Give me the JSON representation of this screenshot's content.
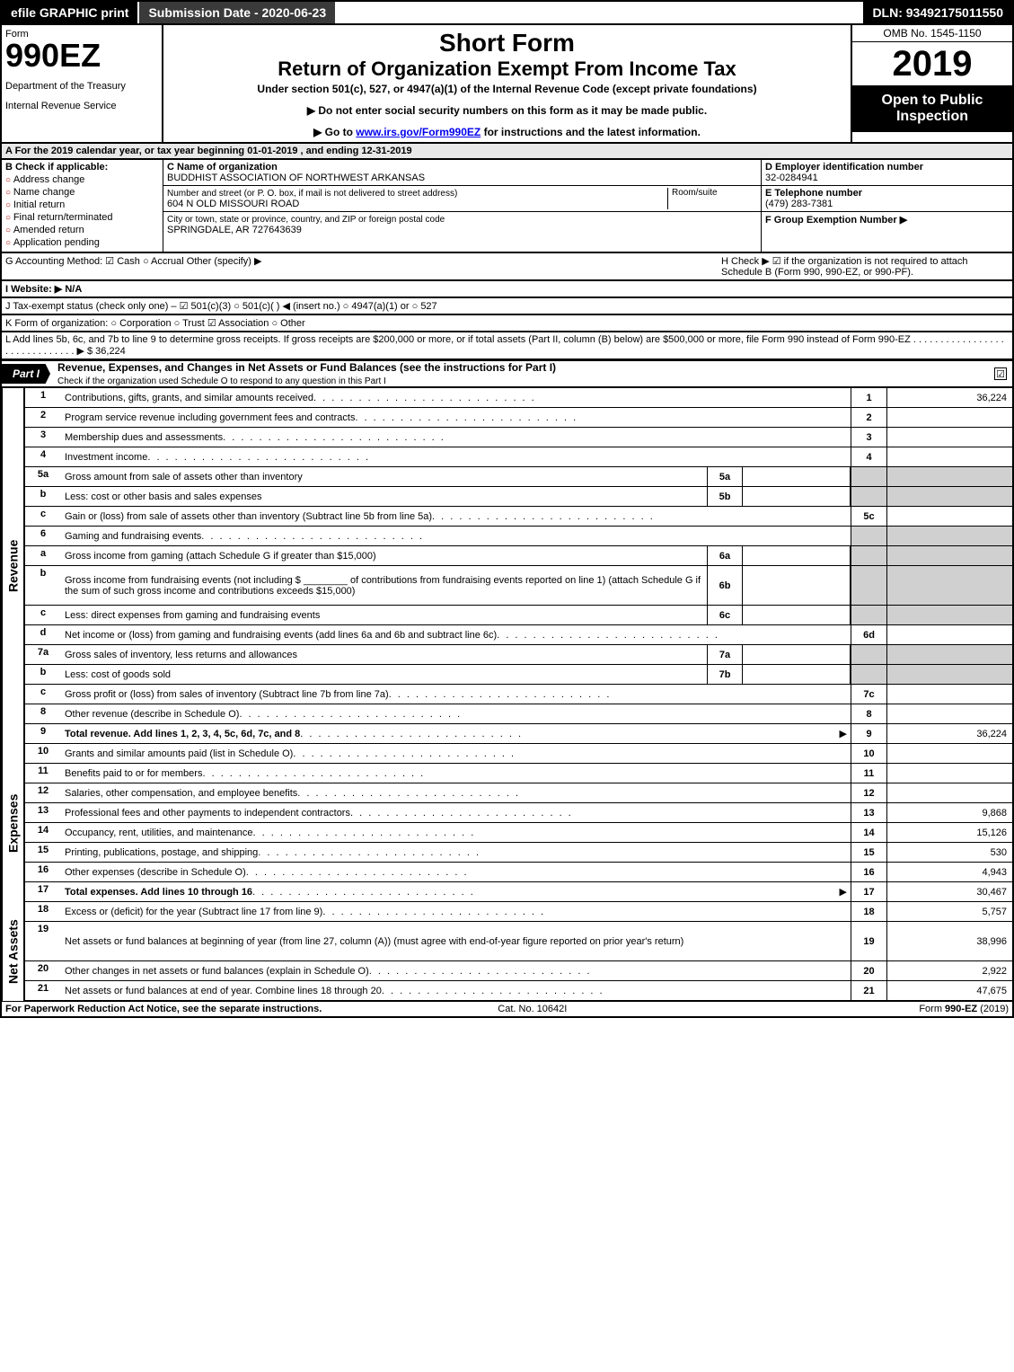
{
  "colors": {
    "black": "#000000",
    "white": "#ffffff",
    "darkgray": "#3a3a3a",
    "shade": "#d0d0d0",
    "lightgray": "#e8e8e8",
    "link": "#0000ee",
    "redcircle": "#b00000"
  },
  "topbar": {
    "efile": "efile GRAPHIC print",
    "subdate": "Submission Date - 2020-06-23",
    "dln": "DLN: 93492175011550"
  },
  "header": {
    "form_label": "Form",
    "form_num": "990EZ",
    "dept1": "Department of the Treasury",
    "dept2": "Internal Revenue Service",
    "title1": "Short Form",
    "title2": "Return of Organization Exempt From Income Tax",
    "sub": "Under section 501(c), 527, or 4947(a)(1) of the Internal Revenue Code (except private foundations)",
    "note1": "▶ Do not enter social security numbers on this form as it may be made public.",
    "note2_pre": "▶ Go to ",
    "note2_link": "www.irs.gov/Form990EZ",
    "note2_post": " for instructions and the latest information.",
    "omb": "OMB No. 1545-1150",
    "year": "2019",
    "open": "Open to Public Inspection"
  },
  "calline": "A  For the 2019 calendar year, or tax year beginning 01-01-2019 , and ending 12-31-2019",
  "boxB": {
    "title": "B  Check if applicable:",
    "items": [
      "Address change",
      "Name change",
      "Initial return",
      "Final return/terminated",
      "Amended return",
      "Application pending"
    ]
  },
  "boxC": {
    "c_label": "C Name of organization",
    "c_name": "BUDDHIST ASSOCIATION OF NORTHWEST ARKANSAS",
    "street_label": "Number and street (or P. O. box, if mail is not delivered to street address)",
    "street": "604 N OLD MISSOURI ROAD",
    "room_label": "Room/suite",
    "city_label": "City or town, state or province, country, and ZIP or foreign postal code",
    "city": "SPRINGDALE, AR  727643639"
  },
  "boxD": {
    "d_label": "D Employer identification number",
    "d_ein": "32-0284941",
    "e_label": "E Telephone number",
    "e_phone": "(479) 283-7381",
    "f_label": "F Group Exemption Number  ▶"
  },
  "gline": {
    "g": "G Accounting Method:  ☑ Cash  ○ Accrual   Other (specify) ▶",
    "h": "H  Check ▶ ☑ if the organization is not required to attach Schedule B (Form 990, 990-EZ, or 990-PF)."
  },
  "iline": "I Website: ▶ N/A",
  "jline": "J Tax-exempt status (check only one) – ☑ 501(c)(3)  ○ 501(c)( )  ◀ (insert no.)  ○ 4947(a)(1) or  ○ 527",
  "kline": "K Form of organization:   ○ Corporation   ○ Trust   ☑ Association   ○ Other",
  "lline": "L Add lines 5b, 6c, and 7b to line 9 to determine gross receipts. If gross receipts are $200,000 or more, or if total assets (Part II, column (B) below) are $500,000 or more, file Form 990 instead of Form 990-EZ  .  .  .  .  .  .  .  .  .  .  .  .  .  .  .  .  .  .  .  .  .  .  .  .  .  .  .  .  .  .  ▶ $ 36,224",
  "part1": {
    "tag": "Part I",
    "title": "Revenue, Expenses, and Changes in Net Assets or Fund Balances (see the instructions for Part I)",
    "check_label": "Check if the organization used Schedule O to respond to any question in this Part I",
    "checked": "☑"
  },
  "sections": [
    {
      "side": "Revenue",
      "rows": [
        {
          "ln": "1",
          "desc": "Contributions, gifts, grants, and similar amounts received",
          "r": "1",
          "val": "36,224"
        },
        {
          "ln": "2",
          "desc": "Program service revenue including government fees and contracts",
          "r": "2",
          "val": ""
        },
        {
          "ln": "3",
          "desc": "Membership dues and assessments",
          "r": "3",
          "val": ""
        },
        {
          "ln": "4",
          "desc": "Investment income",
          "r": "4",
          "val": ""
        },
        {
          "ln": "5a",
          "desc": "Gross amount from sale of assets other than inventory",
          "mid": "5a",
          "midval": "",
          "shade_r": true
        },
        {
          "ln": "b",
          "desc": "Less: cost or other basis and sales expenses",
          "mid": "5b",
          "midval": "",
          "shade_r": true
        },
        {
          "ln": "c",
          "desc": "Gain or (loss) from sale of assets other than inventory (Subtract line 5b from line 5a)",
          "r": "5c",
          "val": ""
        },
        {
          "ln": "6",
          "desc": "Gaming and fundraising events",
          "shade_r": true,
          "noborder": true
        },
        {
          "ln": "a",
          "desc": "Gross income from gaming (attach Schedule G if greater than $15,000)",
          "mid": "6a",
          "midval": "",
          "shade_r": true
        },
        {
          "ln": "b",
          "desc": "Gross income from fundraising events (not including $ ________ of contributions from fundraising events reported on line 1) (attach Schedule G if the sum of such gross income and contributions exceeds $15,000)",
          "mid": "6b",
          "midval": "",
          "shade_r": true,
          "tall": true
        },
        {
          "ln": "c",
          "desc": "Less: direct expenses from gaming and fundraising events",
          "mid": "6c",
          "midval": "",
          "shade_r": true
        },
        {
          "ln": "d",
          "desc": "Net income or (loss) from gaming and fundraising events (add lines 6a and 6b and subtract line 6c)",
          "r": "6d",
          "val": ""
        },
        {
          "ln": "7a",
          "desc": "Gross sales of inventory, less returns and allowances",
          "mid": "7a",
          "midval": "",
          "shade_r": true
        },
        {
          "ln": "b",
          "desc": "Less: cost of goods sold",
          "mid": "7b",
          "midval": "",
          "shade_r": true
        },
        {
          "ln": "c",
          "desc": "Gross profit or (loss) from sales of inventory (Subtract line 7b from line 7a)",
          "r": "7c",
          "val": ""
        },
        {
          "ln": "8",
          "desc": "Other revenue (describe in Schedule O)",
          "r": "8",
          "val": ""
        },
        {
          "ln": "9",
          "desc": "Total revenue. Add lines 1, 2, 3, 4, 5c, 6d, 7c, and 8",
          "r": "9",
          "val": "36,224",
          "bold": true,
          "arrow": true
        }
      ]
    },
    {
      "side": "Expenses",
      "rows": [
        {
          "ln": "10",
          "desc": "Grants and similar amounts paid (list in Schedule O)",
          "r": "10",
          "val": ""
        },
        {
          "ln": "11",
          "desc": "Benefits paid to or for members",
          "r": "11",
          "val": ""
        },
        {
          "ln": "12",
          "desc": "Salaries, other compensation, and employee benefits",
          "r": "12",
          "val": ""
        },
        {
          "ln": "13",
          "desc": "Professional fees and other payments to independent contractors",
          "r": "13",
          "val": "9,868"
        },
        {
          "ln": "14",
          "desc": "Occupancy, rent, utilities, and maintenance",
          "r": "14",
          "val": "15,126"
        },
        {
          "ln": "15",
          "desc": "Printing, publications, postage, and shipping",
          "r": "15",
          "val": "530"
        },
        {
          "ln": "16",
          "desc": "Other expenses (describe in Schedule O)",
          "r": "16",
          "val": "4,943"
        },
        {
          "ln": "17",
          "desc": "Total expenses. Add lines 10 through 16",
          "r": "17",
          "val": "30,467",
          "bold": true,
          "arrow": true
        }
      ]
    },
    {
      "side": "Net Assets",
      "rows": [
        {
          "ln": "18",
          "desc": "Excess or (deficit) for the year (Subtract line 17 from line 9)",
          "r": "18",
          "val": "5,757"
        },
        {
          "ln": "19",
          "desc": "Net assets or fund balances at beginning of year (from line 27, column (A)) (must agree with end-of-year figure reported on prior year's return)",
          "r": "19",
          "val": "38,996",
          "tall": true
        },
        {
          "ln": "20",
          "desc": "Other changes in net assets or fund balances (explain in Schedule O)",
          "r": "20",
          "val": "2,922"
        },
        {
          "ln": "21",
          "desc": "Net assets or fund balances at end of year. Combine lines 18 through 20",
          "r": "21",
          "val": "47,675"
        }
      ]
    }
  ],
  "footer": {
    "left": "For Paperwork Reduction Act Notice, see the separate instructions.",
    "mid": "Cat. No. 10642I",
    "right": "Form 990-EZ (2019)"
  }
}
